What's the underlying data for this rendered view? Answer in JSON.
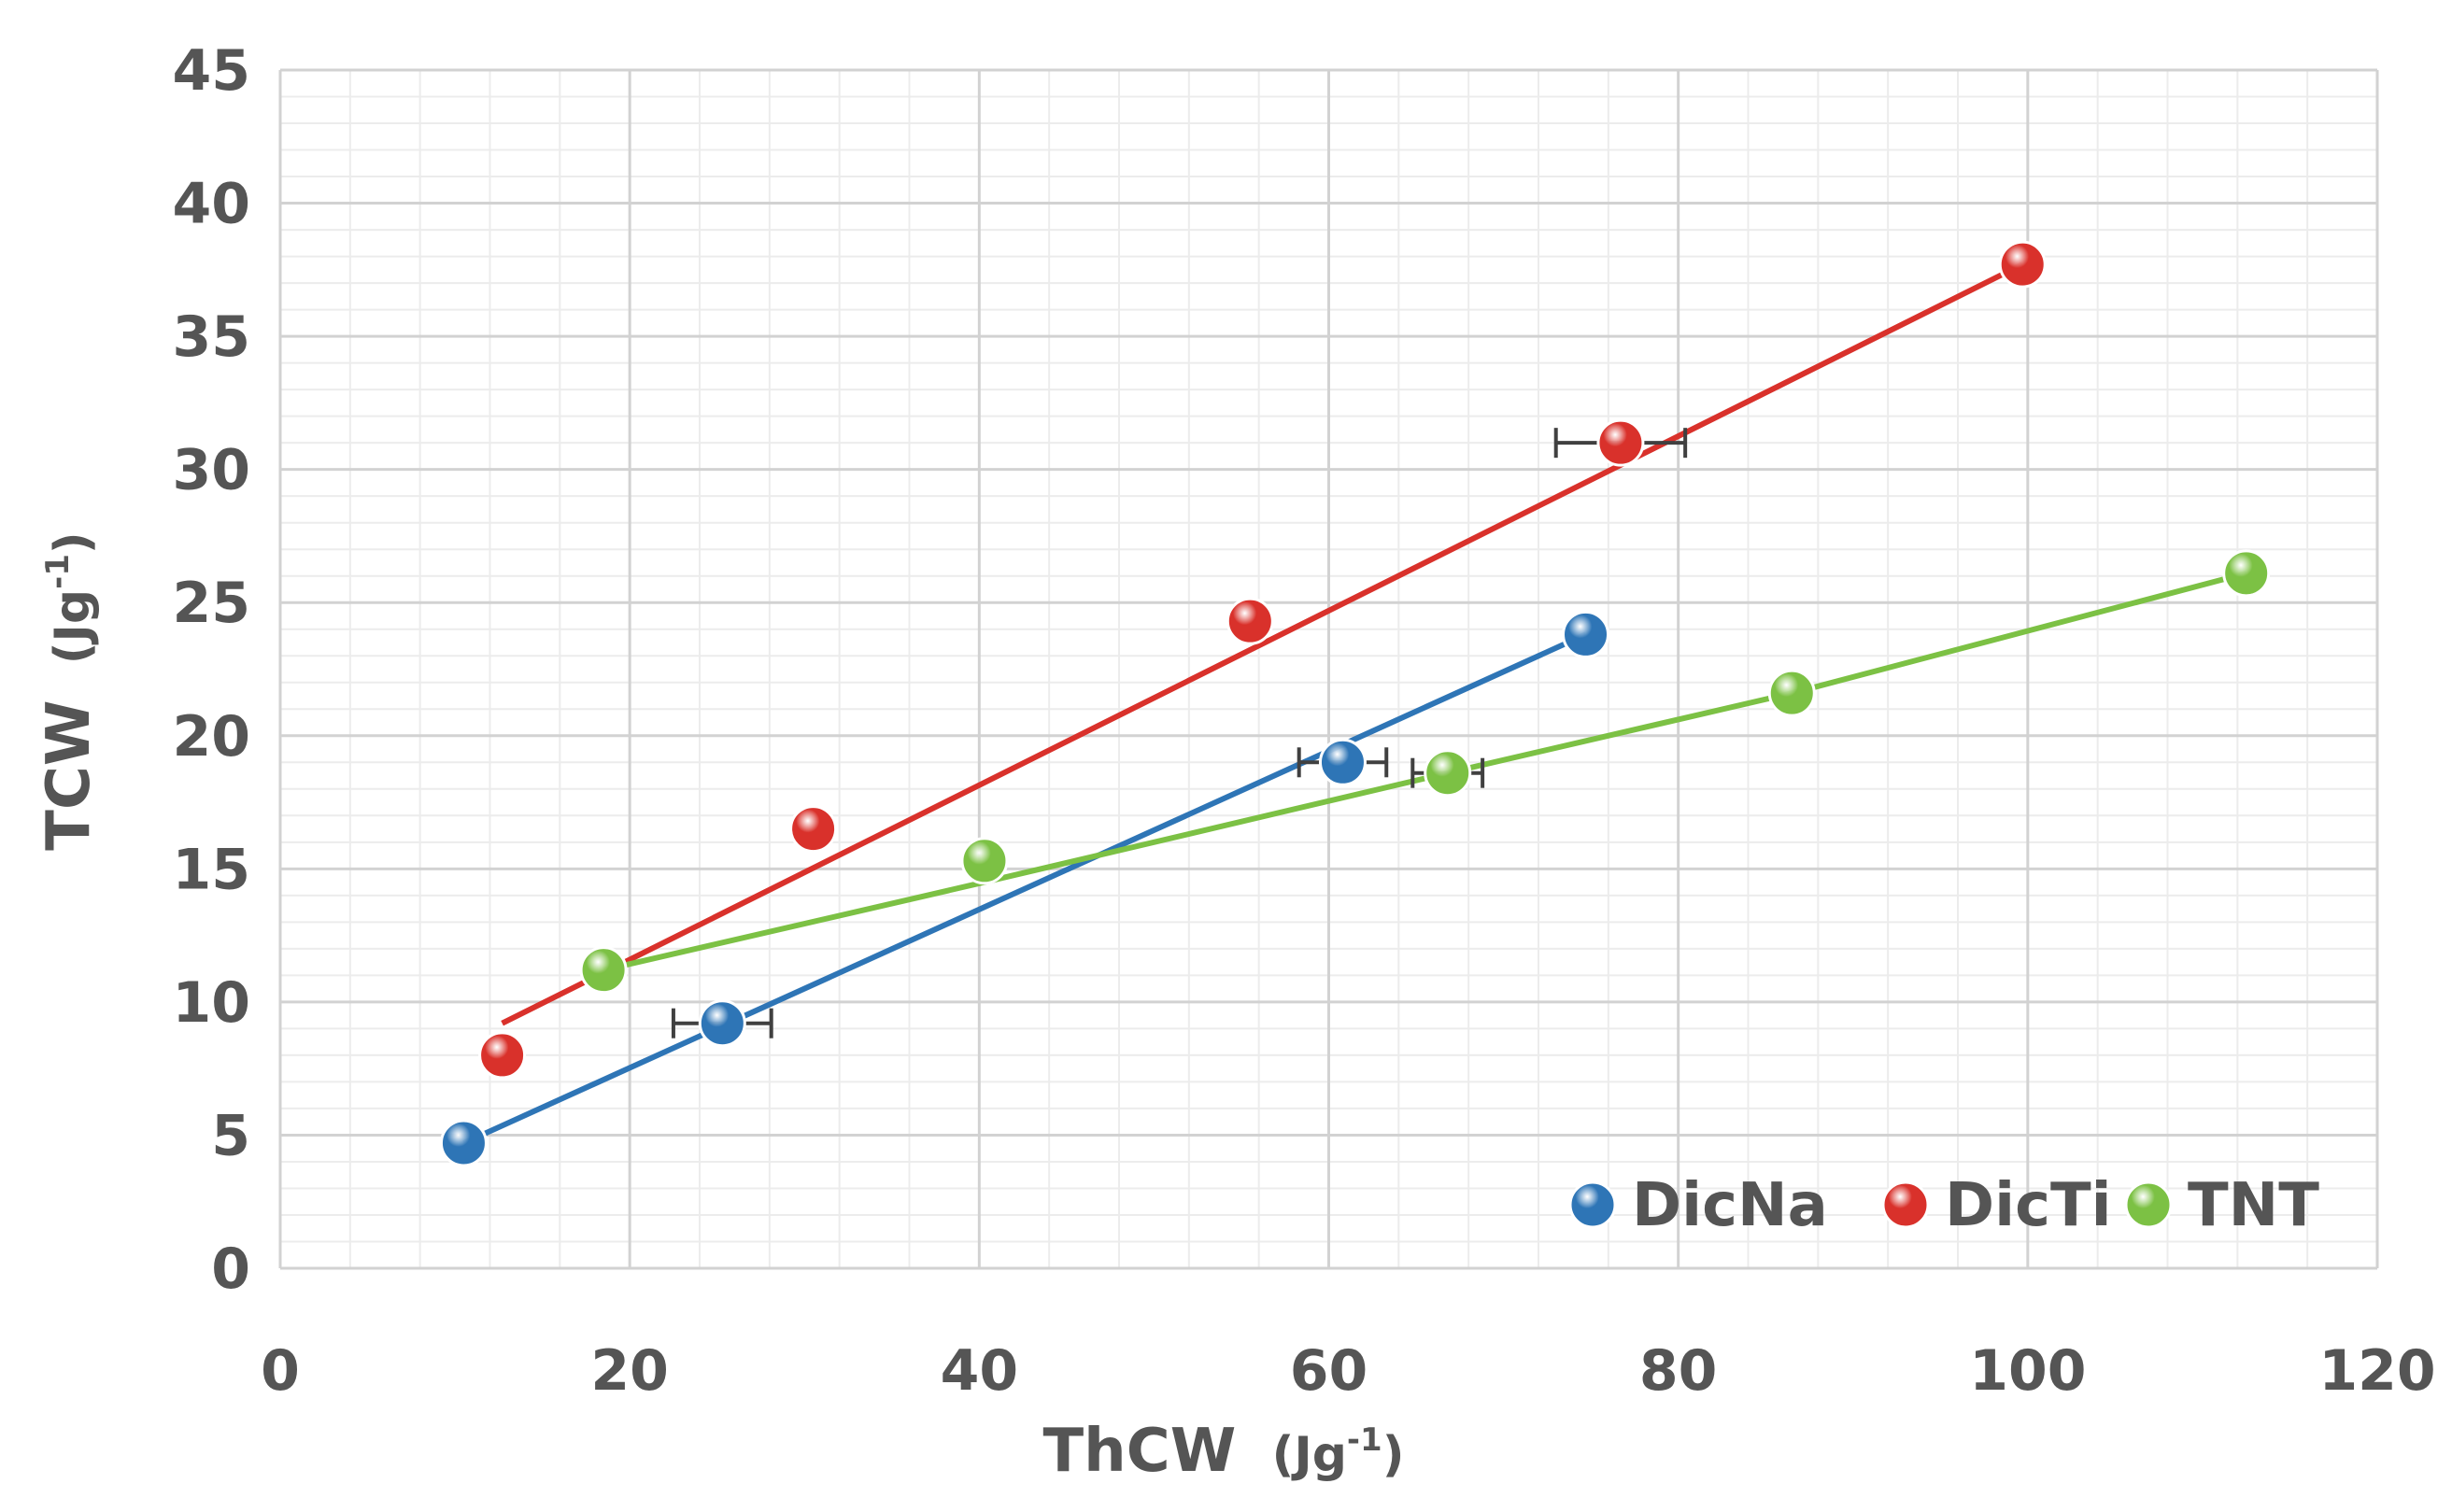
{
  "chart_data": {
    "type": "scatter",
    "title": "",
    "xlabel": "ThCW",
    "xlabel_unit": "(Jg-1)",
    "ylabel": "TCW",
    "ylabel_unit": "(Jg-1)",
    "xlim": [
      0,
      120
    ],
    "ylim": [
      0,
      45
    ],
    "xticks": [
      "0",
      "20",
      "40",
      "60",
      "80",
      "100",
      "120"
    ],
    "yticks": [
      "0",
      "5",
      "10",
      "15",
      "20",
      "25",
      "30",
      "35",
      "40",
      "45"
    ],
    "grid": true,
    "legend_position": "bottom-right",
    "series": [
      {
        "name": "DicNa",
        "color": "#2E75B6",
        "points": [
          [
            10.5,
            4.7
          ],
          [
            25.3,
            9.2
          ],
          [
            60.8,
            19.0
          ],
          [
            74.7,
            23.8
          ]
        ],
        "xerr": [
          0,
          2.8,
          2.5,
          0
        ],
        "fit_line": [
          [
            10.5,
            4.7
          ],
          [
            74.7,
            23.8
          ]
        ]
      },
      {
        "name": "DicTi",
        "color": "#D9312B",
        "points": [
          [
            12.7,
            8.0
          ],
          [
            30.5,
            16.5
          ],
          [
            55.5,
            24.3
          ],
          [
            76.7,
            31.0
          ],
          [
            99.7,
            37.7
          ]
        ],
        "xerr": [
          0,
          0,
          0,
          3.7,
          0
        ],
        "fit_line": [
          [
            12.7,
            9.2
          ],
          [
            99.7,
            37.7
          ]
        ]
      },
      {
        "name": "TNT",
        "color": "#7CC144",
        "points": [
          [
            18.5,
            11.2
          ],
          [
            40.3,
            15.3
          ],
          [
            66.8,
            18.6
          ],
          [
            86.5,
            21.6
          ],
          [
            112.5,
            26.1
          ]
        ],
        "xerr": [
          0,
          0,
          2.0,
          0,
          0
        ],
        "fit_line": [
          [
            18.5,
            11.2
          ],
          [
            40.3,
            14.5
          ],
          [
            66.8,
            18.6
          ],
          [
            86.5,
            21.6
          ],
          [
            112.5,
            26.1
          ]
        ]
      }
    ]
  }
}
